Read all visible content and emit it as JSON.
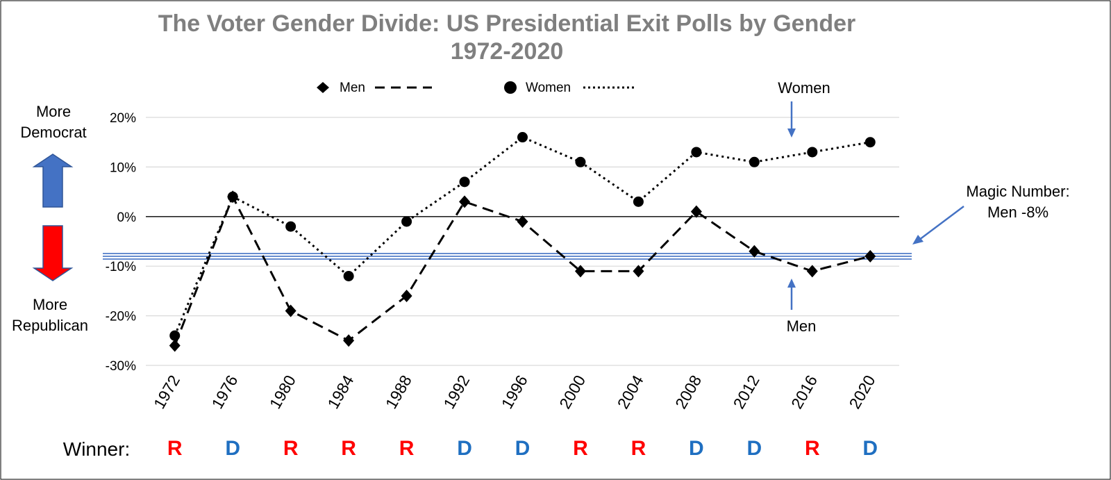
{
  "chart_data": {
    "type": "line",
    "title": "The Voter Gender Divide: US Presidential Exit Polls by Gender",
    "subtitle": "1972-2020",
    "x": [
      "1972",
      "1976",
      "1980",
      "1984",
      "1988",
      "1992",
      "1996",
      "2000",
      "2004",
      "2008",
      "2012",
      "2016",
      "2020"
    ],
    "ylim": [
      -30,
      20
    ],
    "yticks": [
      20,
      10,
      0,
      -10,
      -20,
      -30
    ],
    "ytick_labels": [
      "20%",
      "10%",
      "0%",
      "-10%",
      "-20%",
      "-30%"
    ],
    "grid": true,
    "legend_position": "top",
    "series": [
      {
        "name": "Men",
        "marker": "diamond",
        "line": "dashed",
        "values": [
          -26,
          4,
          -19,
          -25,
          -16,
          3,
          -1,
          -11,
          -11,
          1,
          -7,
          -11,
          -8
        ]
      },
      {
        "name": "Women",
        "marker": "circle",
        "line": "dotted",
        "values": [
          -24,
          4,
          -2,
          -12,
          -1,
          7,
          16,
          11,
          3,
          13,
          11,
          13,
          15
        ]
      }
    ],
    "reference_line": {
      "value": -8,
      "color": "#4472c4"
    },
    "annotations": {
      "more_democrat": "More Democrat",
      "more_republican": "More Republican",
      "women_pointer": "Women",
      "men_pointer": "Men",
      "magic_number": "Magic Number: Men -8%"
    },
    "winner_label": "Winner:",
    "winners": [
      "R",
      "D",
      "R",
      "R",
      "R",
      "D",
      "D",
      "R",
      "R",
      "D",
      "D",
      "R",
      "D"
    ]
  },
  "colors": {
    "republican": "#ff0000",
    "democrat": "#1f6fc1",
    "arrow_up": "#4472c4",
    "arrow_down": "#ff0000",
    "pointer": "#4472c4",
    "grid": "#d9d9d9",
    "title": "#7f7f7f"
  }
}
